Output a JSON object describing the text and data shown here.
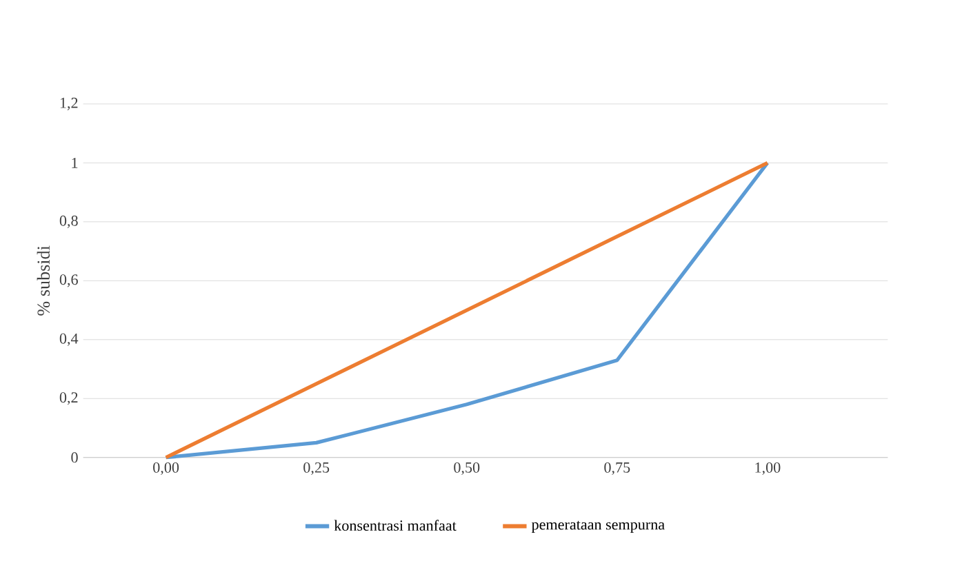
{
  "chart_data": {
    "type": "line",
    "ylabel": "% subsidi",
    "categories": [
      "0,00",
      "0,25",
      "0,50",
      "0,75",
      "1,00"
    ],
    "series": [
      {
        "name": "konsentrasi manfaat",
        "color": "#5b9bd5",
        "values": [
          0,
          0.05,
          0.18,
          0.33,
          1
        ]
      },
      {
        "name": "pemerataan sempurna",
        "color": "#ed7d31",
        "values": [
          0,
          0.25,
          0.5,
          0.75,
          1
        ]
      }
    ],
    "ylim": [
      0,
      1.2
    ],
    "yticks": [
      0,
      {
        "value": 0.2,
        "label": "0,2"
      },
      {
        "value": 0.4,
        "label": "0,4"
      },
      {
        "value": 0.6,
        "label": "0,6"
      },
      {
        "value": 0.8,
        "label": "0,8"
      },
      1,
      {
        "value": 1.2,
        "label": "1,2"
      }
    ],
    "grid": "y",
    "legend": "bottom",
    "marker": "none",
    "line_style": "solid"
  }
}
